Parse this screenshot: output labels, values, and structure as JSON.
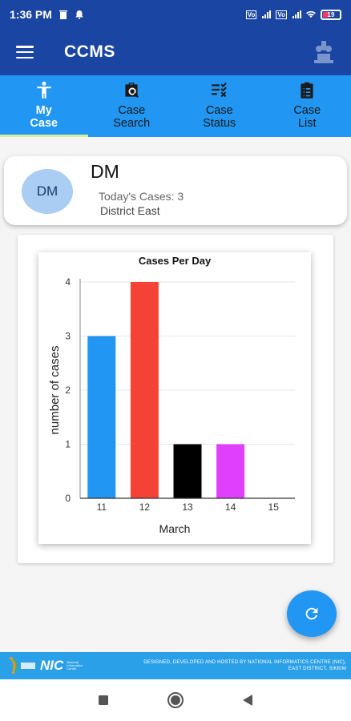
{
  "status_bar": {
    "time": "1:36 PM",
    "network": "VoLTE 4G",
    "battery": "19"
  },
  "app_bar": {
    "title": "CCMS"
  },
  "tabs": [
    {
      "label": "My\nCase",
      "icon": "person-icon",
      "active": true
    },
    {
      "label": "Case\nSearch",
      "icon": "case-search-icon",
      "active": false
    },
    {
      "label": "Case\nStatus",
      "icon": "checklist-icon",
      "active": false
    },
    {
      "label": "Case\nList",
      "icon": "clipboard-list-icon",
      "active": false
    }
  ],
  "user": {
    "initials": "DM",
    "name": "DM",
    "todays_cases": "Today's Cases: 3",
    "district": "District East"
  },
  "chart_data": {
    "type": "bar",
    "title": "Cases Per Day",
    "xlabel": "March",
    "ylabel": "number of cases",
    "categories": [
      "11",
      "12",
      "13",
      "14",
      "15"
    ],
    "values": [
      3,
      4,
      1,
      1,
      0
    ],
    "colors": [
      "#2196f3",
      "#f44336",
      "#000000",
      "#e040fb",
      "#9e9e9e"
    ],
    "ylim": [
      0,
      4
    ],
    "yticks": [
      "0",
      "1",
      "2",
      "3",
      "4"
    ],
    "grid": true
  },
  "footer": {
    "org": "NIC",
    "org_full": "National Informatics Centre",
    "credit_line1": "DESIGNED, DEVELOPED AND HOSTED BY NATIONAL INFORMATICS CENTRE (NIC),",
    "credit_line2": "EAST DISTRICT, SIKKIM"
  },
  "colors": {
    "primary": "#1a45a3",
    "tab_bar": "#2196f3",
    "accent_underline": "#d8ec9c",
    "fab": "#2196f3"
  }
}
